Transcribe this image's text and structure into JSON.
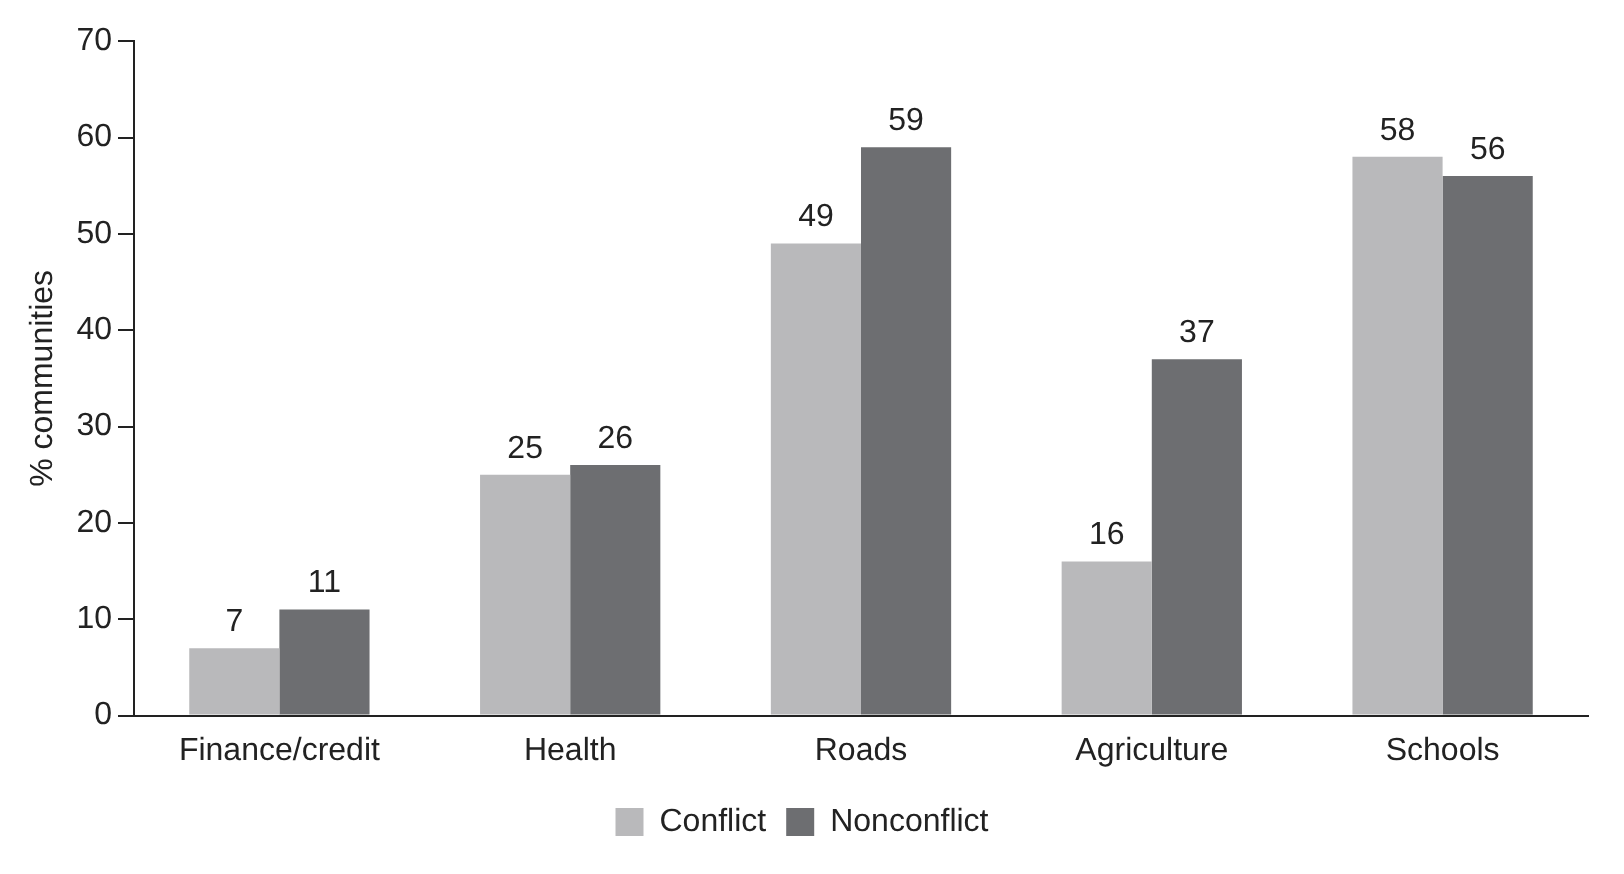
{
  "chart_data": {
    "type": "bar",
    "ylabel": "% communities",
    "categories": [
      "Finance/credit",
      "Health",
      "Roads",
      "Agriculture",
      "Schools"
    ],
    "series": [
      {
        "name": "Conflict",
        "color": "#b9b9bb",
        "values": [
          7,
          25,
          49,
          16,
          58
        ]
      },
      {
        "name": "Nonconflict",
        "color": "#6d6e71",
        "values": [
          11,
          26,
          59,
          37,
          56
        ]
      }
    ],
    "ylim": [
      0,
      70
    ],
    "yticks": [
      0,
      10,
      20,
      30,
      40,
      50,
      60,
      70
    ],
    "grid": false,
    "legend": "bottom",
    "data_labels": true
  }
}
